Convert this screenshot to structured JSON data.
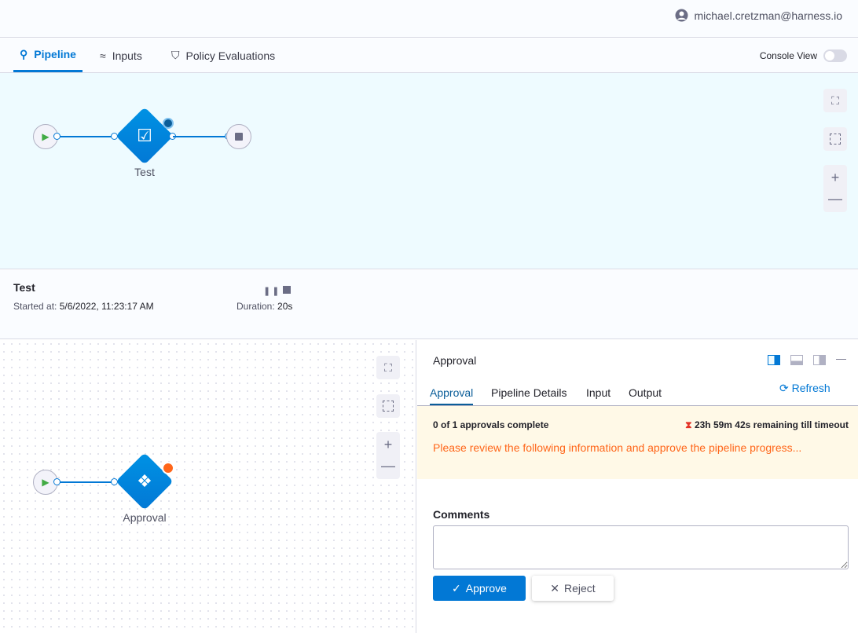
{
  "header": {
    "user_email": "michael.cretzman@harness.io"
  },
  "tabs": [
    {
      "label": "Pipeline",
      "icon": "pipeline-icon",
      "active": true
    },
    {
      "label": "Inputs",
      "icon": "inputs-icon"
    },
    {
      "label": "Policy Evaluations",
      "icon": "shield-check-icon"
    }
  ],
  "console_view": {
    "label": "Console View",
    "enabled": false
  },
  "pipeline_graph": {
    "stage_label": "Test"
  },
  "stage": {
    "name": "Test",
    "started_label": "Started at:",
    "started_value": "5/6/2022, 11:23:17 AM",
    "duration_label": "Duration:",
    "duration_value": "20s"
  },
  "step_graph": {
    "step_label": "Approval"
  },
  "panel": {
    "title": "Approval",
    "tabs": [
      "Approval",
      "Pipeline Details",
      "Input",
      "Output"
    ],
    "refresh": "Refresh",
    "approvals_status": "0 of 1 approvals complete",
    "timeout": "23h 59m 42s remaining till timeout",
    "message": "Please review the following information and approve the pipeline progress...",
    "comments_label": "Comments",
    "comments_value": "",
    "approve": "Approve",
    "reject": "Reject"
  },
  "colors": {
    "accent": "#0278d5",
    "warning_text": "#ff661a",
    "banner_bg": "#fff9e7"
  }
}
